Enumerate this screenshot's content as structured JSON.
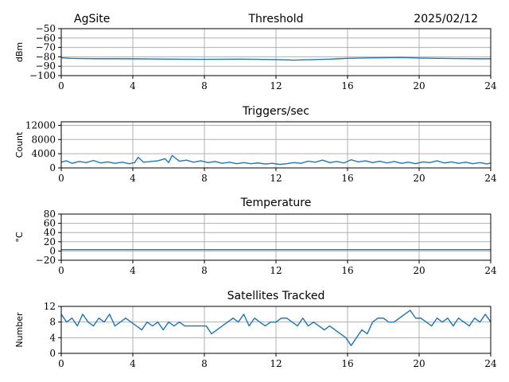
{
  "header": {
    "site": "AgSite",
    "date": "2025/02/12"
  },
  "chart_data": [
    {
      "type": "line",
      "title": "Threshold",
      "ylabel": "dBm",
      "xlim": [
        0,
        24
      ],
      "ylim": [
        -100,
        -50
      ],
      "xticks": [
        0,
        4,
        8,
        12,
        16,
        20,
        24
      ],
      "yticks": [
        -100,
        -90,
        -80,
        -70,
        -60,
        -50
      ],
      "ytick_labels": [
        "−100",
        "−90",
        "−80",
        "−70",
        "−60",
        "−50"
      ],
      "grid": true,
      "x": [
        0,
        0.5,
        1,
        2,
        3,
        4,
        5,
        6,
        7,
        8,
        9,
        10,
        11,
        12,
        12.5,
        13,
        14,
        15,
        15.5,
        16,
        17,
        18,
        19,
        19.5,
        20,
        21,
        22,
        23,
        24
      ],
      "y": [
        -81,
        -81.6,
        -81.8,
        -82,
        -82,
        -82.1,
        -82.3,
        -82.5,
        -82.6,
        -82.7,
        -82.6,
        -82.5,
        -82.7,
        -83,
        -83.2,
        -83.5,
        -83,
        -82.5,
        -82,
        -81.6,
        -81.2,
        -81,
        -80.8,
        -81,
        -81.3,
        -81.6,
        -81.8,
        -82,
        -82.1
      ]
    },
    {
      "type": "line",
      "title": "Triggers/sec",
      "ylabel": "Count",
      "xlim": [
        0,
        24
      ],
      "ylim": [
        0,
        13000
      ],
      "xticks": [
        0,
        4,
        8,
        12,
        16,
        20,
        24
      ],
      "yticks": [
        0,
        4000,
        8000,
        12000
      ],
      "ytick_labels": [
        "0",
        "4000",
        "8000",
        "12000"
      ],
      "grid": true,
      "x": [
        0,
        0.3,
        0.6,
        1,
        1.4,
        1.8,
        2.2,
        2.6,
        3,
        3.4,
        3.8,
        4.1,
        4.3,
        4.6,
        5,
        5.4,
        5.8,
        6,
        6.2,
        6.6,
        7,
        7.4,
        7.8,
        8.2,
        8.6,
        9,
        9.4,
        9.8,
        10.2,
        10.6,
        11,
        11.4,
        11.8,
        12.2,
        12.6,
        13,
        13.4,
        13.8,
        14.2,
        14.6,
        15,
        15.4,
        15.8,
        16.2,
        16.6,
        17,
        17.4,
        17.8,
        18.2,
        18.6,
        19,
        19.4,
        19.8,
        20.2,
        20.6,
        21,
        21.4,
        21.8,
        22.2,
        22.6,
        23,
        23.4,
        23.8,
        24
      ],
      "y": [
        1600,
        2000,
        1300,
        1800,
        1500,
        2100,
        1400,
        1700,
        1300,
        1600,
        1200,
        1500,
        3000,
        1600,
        1800,
        2000,
        2600,
        1500,
        3500,
        1900,
        2200,
        1600,
        2000,
        1500,
        1800,
        1300,
        1600,
        1200,
        1500,
        1200,
        1400,
        1100,
        1300,
        1000,
        1200,
        1500,
        1300,
        1900,
        1600,
        2200,
        1500,
        1800,
        1400,
        2300,
        1700,
        2000,
        1500,
        1900,
        1400,
        1800,
        1300,
        1600,
        1200,
        1700,
        1500,
        2000,
        1400,
        1700,
        1300,
        1600,
        1200,
        1500,
        1100,
        1400
      ]
    },
    {
      "type": "line",
      "title": "Temperature",
      "ylabel": "°C",
      "xlim": [
        0,
        24
      ],
      "ylim": [
        -20,
        80
      ],
      "xticks": [
        0,
        4,
        8,
        12,
        16,
        20,
        24
      ],
      "yticks": [
        -20,
        0,
        20,
        40,
        60,
        80
      ],
      "ytick_labels": [
        "−20",
        "0",
        "20",
        "40",
        "60",
        "80"
      ],
      "grid": true,
      "x": [
        0,
        4,
        8,
        12,
        16,
        20,
        24
      ],
      "y": [
        3,
        3,
        3,
        3,
        3,
        3,
        3
      ]
    },
    {
      "type": "line",
      "title": "Satellites Tracked",
      "ylabel": "Number",
      "xlim": [
        0,
        24
      ],
      "ylim": [
        0,
        12
      ],
      "xticks": [
        0,
        4,
        8,
        12,
        16,
        20,
        24
      ],
      "yticks": [
        0,
        4,
        8,
        12
      ],
      "ytick_labels": [
        "0",
        "4",
        "8",
        "12"
      ],
      "grid": true,
      "x": [
        0,
        0.3,
        0.6,
        0.9,
        1.2,
        1.5,
        1.8,
        2.1,
        2.4,
        2.7,
        3,
        3.3,
        3.6,
        3.9,
        4.2,
        4.5,
        4.8,
        5.1,
        5.4,
        5.7,
        6,
        6.3,
        6.6,
        6.9,
        7.2,
        7.5,
        7.8,
        8.1,
        8.4,
        8.7,
        9,
        9.3,
        9.6,
        9.9,
        10.2,
        10.5,
        10.8,
        11.1,
        11.4,
        11.7,
        12,
        12.3,
        12.6,
        12.9,
        13.2,
        13.5,
        13.8,
        14.1,
        14.4,
        14.7,
        15,
        15.3,
        15.6,
        15.9,
        16.2,
        16.5,
        16.8,
        17.1,
        17.4,
        17.7,
        18,
        18.3,
        18.6,
        18.9,
        19.2,
        19.5,
        19.8,
        20.1,
        20.4,
        20.7,
        21,
        21.3,
        21.6,
        21.9,
        22.2,
        22.5,
        22.8,
        23.1,
        23.4,
        23.7,
        24
      ],
      "y": [
        10,
        8,
        9,
        7,
        10,
        8,
        7,
        9,
        8,
        10,
        7,
        8,
        9,
        8,
        7,
        6,
        8,
        7,
        8,
        6,
        8,
        7,
        8,
        7,
        7,
        7,
        7,
        7,
        5,
        6,
        7,
        8,
        9,
        8,
        10,
        7,
        9,
        8,
        7,
        8,
        8,
        9,
        9,
        8,
        7,
        9,
        7,
        8,
        7,
        6,
        7,
        6,
        5,
        4,
        2,
        4,
        6,
        5,
        8,
        9,
        9,
        8,
        8,
        9,
        10,
        11,
        9,
        9,
        8,
        7,
        9,
        8,
        9,
        7,
        9,
        8,
        7,
        9,
        8,
        10,
        8
      ]
    }
  ]
}
